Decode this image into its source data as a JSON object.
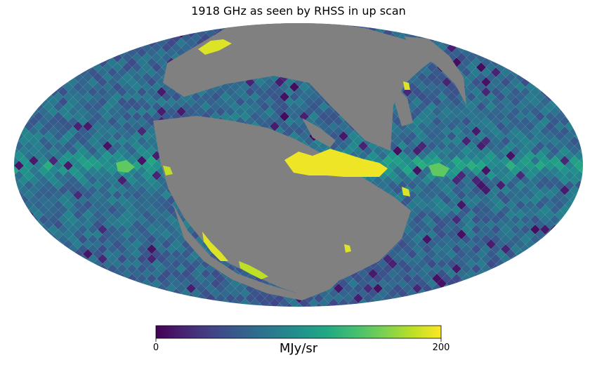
{
  "chart_data": {
    "type": "heatmap",
    "projection": "mollweide",
    "title": "1918 GHz as seen by RHSS in up scan",
    "colormap": "viridis",
    "colorbar": {
      "min": 0,
      "max": 200,
      "label": "MJy/sr",
      "tick_labels": [
        "0",
        "200"
      ],
      "placement": "bottom"
    },
    "unobserved_color": "#808080",
    "background_level_mjy_sr": 75,
    "regions": [
      {
        "kind": "galactic-plane-emission",
        "level_mjy_sr": 110
      },
      {
        "kind": "bright-ridge",
        "level_mjy_sr": 195
      },
      {
        "kind": "bright-feature",
        "level_mjy_sr": 190
      },
      {
        "kind": "bright-feature",
        "level_mjy_sr": 180
      },
      {
        "kind": "bright-feature",
        "level_mjy_sr": 150
      }
    ]
  }
}
